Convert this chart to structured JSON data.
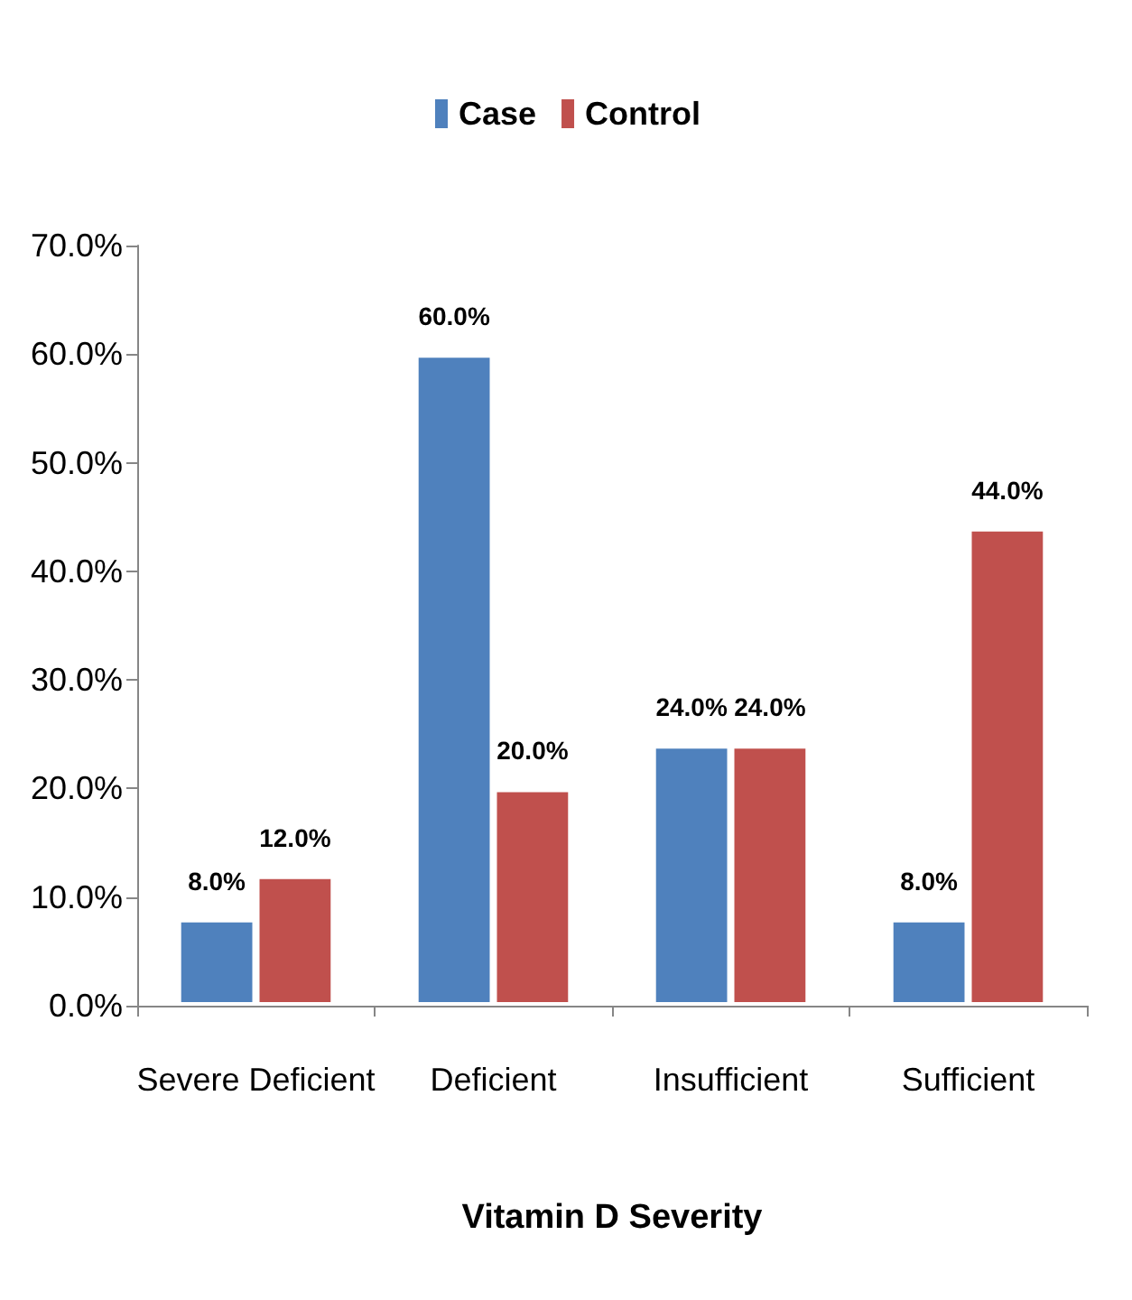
{
  "chart_data": {
    "type": "bar",
    "xlabel": "Vitamin D Severity",
    "categories": [
      "Severe Deficient",
      "Deficient",
      "Insufficient",
      "Sufficient"
    ],
    "series": [
      {
        "name": "Case",
        "color": "#4f81bd",
        "values": [
          8,
          60,
          24,
          8
        ],
        "value_labels": [
          "8.0%",
          "60.0%",
          "24.0%",
          "8.0%"
        ]
      },
      {
        "name": "Control",
        "color": "#c0504d",
        "values": [
          12,
          20,
          24,
          44
        ],
        "value_labels": [
          "12.0%",
          "20.0%",
          "24.0%",
          "44.0%"
        ]
      }
    ],
    "ylim": [
      0,
      70
    ],
    "yticks": [
      {
        "value": 0,
        "label": "0.0%"
      },
      {
        "value": 10,
        "label": "10.0%"
      },
      {
        "value": 20,
        "label": "20.0%"
      },
      {
        "value": 30,
        "label": "30.0%"
      },
      {
        "value": 40,
        "label": "40.0%"
      },
      {
        "value": 50,
        "label": "50.0%"
      },
      {
        "value": 60,
        "label": "60.0%"
      },
      {
        "value": 70,
        "label": "70.0%"
      }
    ],
    "grid": false,
    "legend": "top"
  }
}
